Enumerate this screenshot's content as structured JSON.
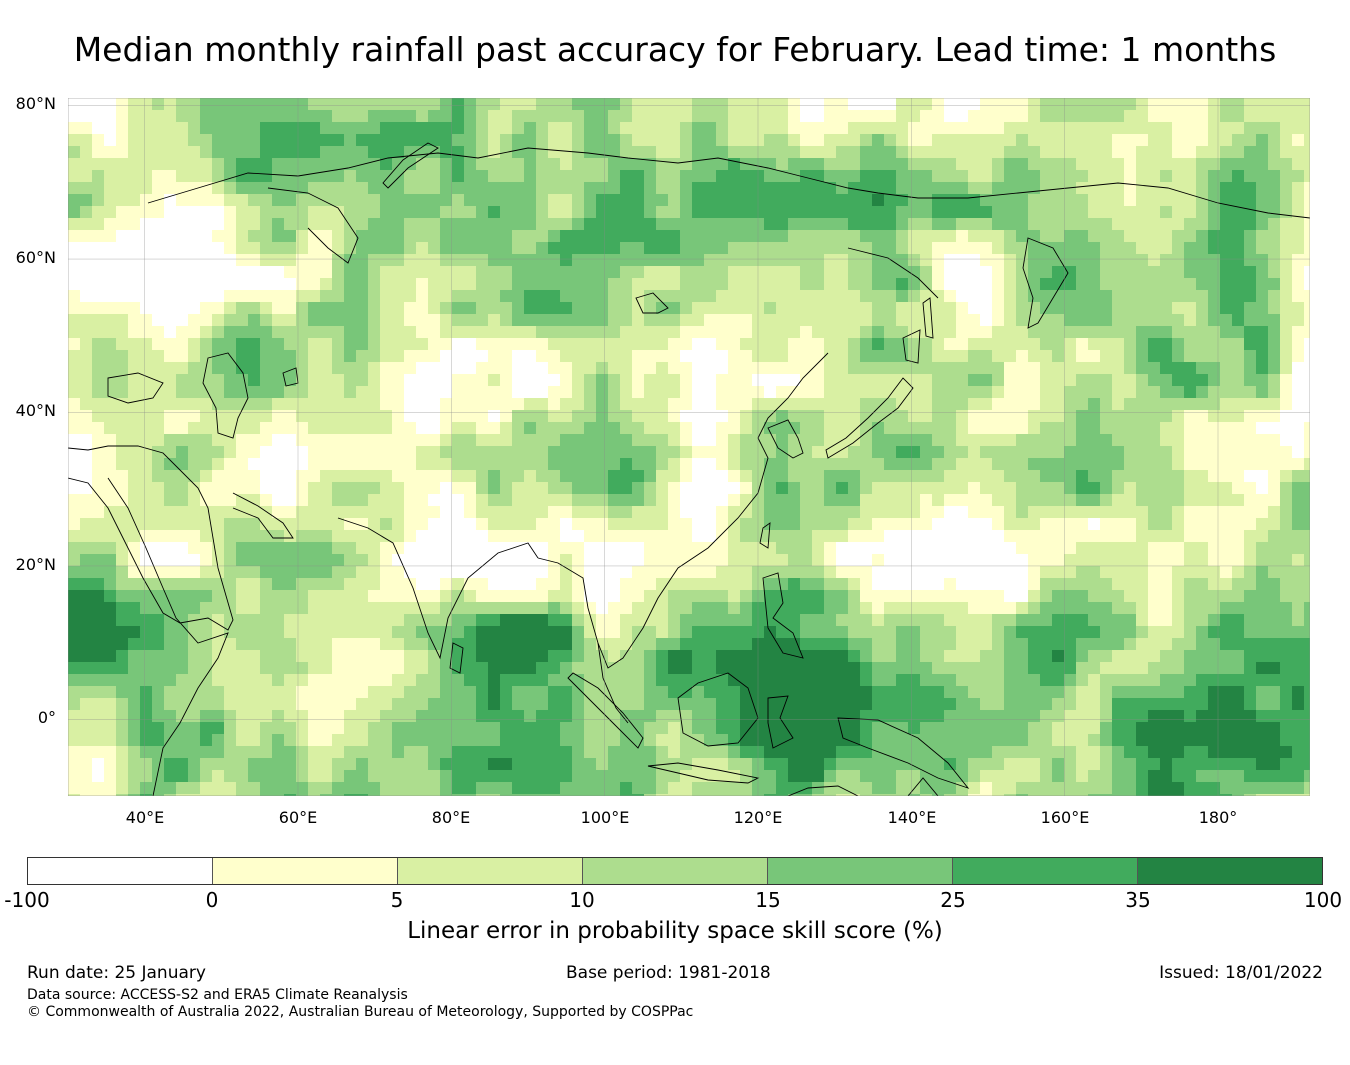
{
  "title": "Median monthly rainfall past accuracy for February. Lead time: 1 months",
  "map": {
    "lat_labels": [
      "80°N",
      "60°N",
      "40°N",
      "20°N",
      "0°"
    ],
    "lon_labels": [
      "40°E",
      "60°E",
      "80°E",
      "100°E",
      "120°E",
      "140°E",
      "160°E",
      "180°"
    ],
    "extent": {
      "lon_min": 30,
      "lon_max": 192,
      "lat_min": -10,
      "lat_max": 81
    }
  },
  "colorbar": {
    "ticks": [
      "-100",
      "0",
      "5",
      "10",
      "15",
      "25",
      "35",
      "100"
    ],
    "colors": [
      "#ffffff",
      "#ffffcc",
      "#d9f0a3",
      "#addd8e",
      "#78c679",
      "#41ab5d",
      "#238443"
    ],
    "label": "Linear error in probability space skill score (%)"
  },
  "footer": {
    "run_date": "Run date: 25 January",
    "base_period": "Base period: 1981-2018",
    "issued": "Issued: 18/01/2022",
    "data_source": "Data source: ACCESS-S2 and ERA5 Climate Reanalysis",
    "copyright": "© Commonwealth of Australia 2022, Australian Bureau of Meteorology, Supported by COSPPac"
  }
}
